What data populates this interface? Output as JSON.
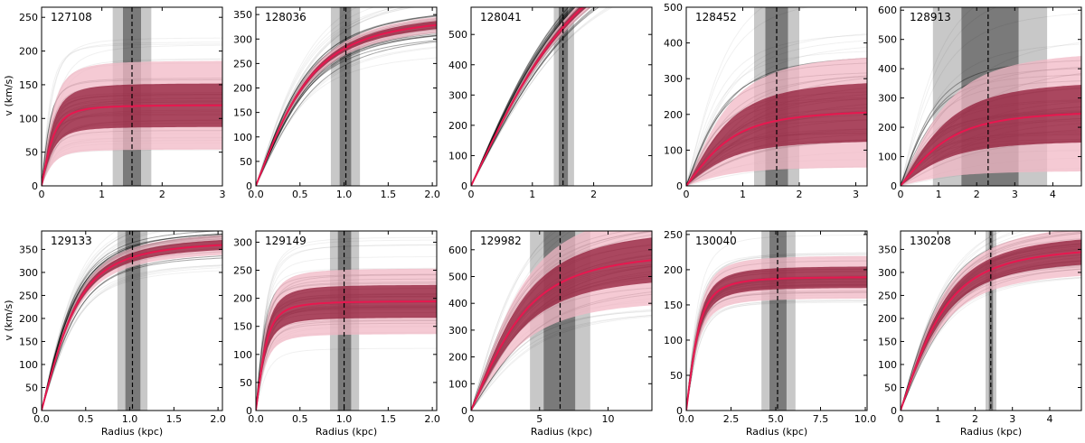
{
  "figure": {
    "ylabel": "v (km/s)",
    "xlabel": "Radius (kpc)"
  },
  "colors": {
    "median": "#e8174f",
    "outer_band": "#f2b8c6",
    "inner_band": "#8a0f2e",
    "samples": "#000000",
    "shade_light": "#c8c8c8",
    "shade_dark": "#7a7a7a"
  },
  "chart_data": [
    {
      "type": "line",
      "id": "127108",
      "xlim": [
        0,
        3
      ],
      "ylim": [
        0,
        265
      ],
      "xticks": [
        0,
        1,
        2,
        3
      ],
      "yticks": [
        0,
        50,
        100,
        150,
        200,
        250
      ],
      "xtick_labels": [
        "0",
        "1",
        "2",
        "3"
      ],
      "ytick_labels": [
        "0",
        "50",
        "100",
        "150",
        "200",
        "250"
      ],
      "vmax": 120,
      "rt": 0.25,
      "outer": 0.55,
      "inner": 0.27,
      "spread": 0.75,
      "dashed_x": 1.5,
      "shade_outer": [
        1.18,
        1.82
      ],
      "shade_inner": [
        1.35,
        1.65
      ]
    },
    {
      "type": "line",
      "id": "128036",
      "xlim": [
        0,
        2.05
      ],
      "ylim": [
        0,
        365
      ],
      "xticks": [
        0,
        0.5,
        1,
        1.5,
        2
      ],
      "yticks": [
        0,
        50,
        100,
        150,
        200,
        250,
        300,
        350
      ],
      "xtick_labels": [
        "0.0",
        "0.5",
        "1.0",
        "1.5",
        "2.0"
      ],
      "ytick_labels": [
        "0",
        "50",
        "100",
        "150",
        "200",
        "250",
        "300",
        "350"
      ],
      "vmax": 350,
      "rt": 0.75,
      "outer": 0.05,
      "inner": 0.025,
      "spread": 0.2,
      "dashed_x": 1.02,
      "shade_outer": [
        0.85,
        1.18
      ],
      "shade_inner": [
        0.95,
        1.08
      ]
    },
    {
      "type": "line",
      "id": "128041",
      "xlim": [
        0,
        2.95
      ],
      "ylim": [
        0,
        590
      ],
      "xticks": [
        0,
        1,
        2
      ],
      "yticks": [
        0,
        100,
        200,
        300,
        400,
        500
      ],
      "xtick_labels": [
        "0",
        "1",
        "2"
      ],
      "ytick_labels": [
        "0",
        "100",
        "200",
        "300",
        "400",
        "500"
      ],
      "vmax": 900,
      "rt": 2.1,
      "outer": 0.04,
      "inner": 0.02,
      "spread": 0.12,
      "dashed_x": 1.5,
      "shade_outer": [
        1.35,
        1.68
      ],
      "shade_inner": [
        1.43,
        1.58
      ]
    },
    {
      "type": "line",
      "id": "128452",
      "xlim": [
        0,
        3.2
      ],
      "ylim": [
        0,
        500
      ],
      "xticks": [
        0,
        1,
        2,
        3
      ],
      "yticks": [
        0,
        100,
        200,
        300,
        400,
        500
      ],
      "xtick_labels": [
        "0",
        "1",
        "2",
        "3"
      ],
      "ytick_labels": [
        "0",
        "100",
        "200",
        "300",
        "400",
        "500"
      ],
      "vmax": 215,
      "rt": 1.0,
      "outer": 0.75,
      "inner": 0.4,
      "spread": 1.05,
      "dashed_x": 1.6,
      "shade_outer": [
        1.2,
        2.0
      ],
      "shade_inner": [
        1.4,
        1.8
      ]
    },
    {
      "type": "line",
      "id": "128913",
      "xlim": [
        0,
        4.75
      ],
      "ylim": [
        0,
        610
      ],
      "xticks": [
        0,
        1,
        2,
        3,
        4
      ],
      "yticks": [
        0,
        100,
        200,
        300,
        400,
        500,
        600
      ],
      "xtick_labels": [
        "0",
        "1",
        "2",
        "3",
        "4"
      ],
      "ytick_labels": [
        "0",
        "100",
        "200",
        "300",
        "400",
        "500",
        "600"
      ],
      "vmax": 260,
      "rt": 1.6,
      "outer": 0.8,
      "inner": 0.4,
      "spread": 1.1,
      "dashed_x": 2.3,
      "shade_outer": [
        0.85,
        3.85
      ],
      "shade_inner": [
        1.6,
        3.1
      ]
    },
    {
      "type": "line",
      "id": "129133",
      "xlim": [
        0,
        2.05
      ],
      "ylim": [
        0,
        390
      ],
      "xticks": [
        0,
        0.5,
        1,
        1.5,
        2
      ],
      "yticks": [
        0,
        50,
        100,
        150,
        200,
        250,
        300,
        350
      ],
      "xtick_labels": [
        "0.0",
        "0.5",
        "1.0",
        "1.5",
        "2.0"
      ],
      "ytick_labels": [
        "0",
        "50",
        "100",
        "150",
        "200",
        "250",
        "300",
        "350"
      ],
      "vmax": 370,
      "rt": 0.5,
      "outer": 0.06,
      "inner": 0.03,
      "spread": 0.18,
      "dashed_x": 1.03,
      "shade_outer": [
        0.86,
        1.2
      ],
      "shade_inner": [
        0.95,
        1.12
      ]
    },
    {
      "type": "line",
      "id": "129149",
      "xlim": [
        0,
        2.05
      ],
      "ylim": [
        0,
        320
      ],
      "xticks": [
        0,
        0.5,
        1,
        1.5,
        2
      ],
      "yticks": [
        0,
        50,
        100,
        150,
        200,
        250,
        300
      ],
      "xtick_labels": [
        "0.0",
        "0.5",
        "1.0",
        "1.5",
        "2.0"
      ],
      "ytick_labels": [
        "0",
        "50",
        "100",
        "150",
        "200",
        "250",
        "300"
      ],
      "vmax": 195,
      "rt": 0.15,
      "outer": 0.3,
      "inner": 0.15,
      "spread": 0.45,
      "dashed_x": 1.0,
      "shade_outer": [
        0.84,
        1.17
      ],
      "shade_inner": [
        0.93,
        1.08
      ]
    },
    {
      "type": "line",
      "id": "129982",
      "xlim": [
        0,
        13.2
      ],
      "ylim": [
        0,
        670
      ],
      "xticks": [
        0,
        5,
        10
      ],
      "yticks": [
        0,
        100,
        200,
        300,
        400,
        500,
        600
      ],
      "xtick_labels": [
        "0",
        "5",
        "10"
      ],
      "ytick_labels": [
        "0",
        "100",
        "200",
        "300",
        "400",
        "500",
        "600"
      ],
      "vmax": 600,
      "rt": 5.0,
      "outer": 0.3,
      "inner": 0.15,
      "spread": 0.45,
      "dashed_x": 6.5,
      "shade_outer": [
        4.3,
        8.7
      ],
      "shade_inner": [
        5.3,
        7.6
      ]
    },
    {
      "type": "line",
      "id": "130040",
      "xlim": [
        0,
        10.1
      ],
      "ylim": [
        0,
        255
      ],
      "xticks": [
        0,
        2.5,
        5,
        7.5,
        10
      ],
      "yticks": [
        0,
        50,
        100,
        150,
        200,
        250
      ],
      "xtick_labels": [
        "0.0",
        "2.5",
        "5.0",
        "7.5",
        "10.0"
      ],
      "ytick_labels": [
        "0",
        "50",
        "100",
        "150",
        "200",
        "250"
      ],
      "vmax": 190,
      "rt": 0.9,
      "outer": 0.16,
      "inner": 0.08,
      "spread": 0.25,
      "dashed_x": 5.1,
      "shade_outer": [
        4.2,
        6.1
      ],
      "shade_inner": [
        4.65,
        5.6
      ]
    },
    {
      "type": "line",
      "id": "130208",
      "xlim": [
        0,
        4.85
      ],
      "ylim": [
        0,
        390
      ],
      "xticks": [
        0,
        1,
        2,
        3,
        4
      ],
      "yticks": [
        0,
        50,
        100,
        150,
        200,
        250,
        300,
        350
      ],
      "xtick_labels": [
        "0",
        "1",
        "2",
        "3",
        "4"
      ],
      "ytick_labels": [
        "0",
        "50",
        "100",
        "150",
        "200",
        "250",
        "300",
        "350"
      ],
      "vmax": 360,
      "rt": 1.5,
      "outer": 0.15,
      "inner": 0.08,
      "spread": 0.25,
      "dashed_x": 2.42,
      "shade_outer": [
        2.28,
        2.57
      ],
      "shade_inner": [
        2.37,
        2.48
      ]
    }
  ]
}
